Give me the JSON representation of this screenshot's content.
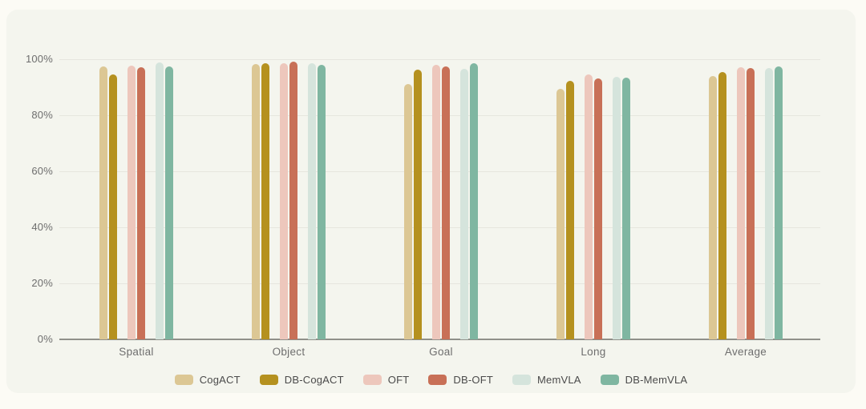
{
  "page": {
    "background": "#fcfbf5",
    "card_background": "#f4f5ee",
    "gridline_color": "#e6e6de",
    "axis_line_color": "#90908a",
    "tick_text_color": "#6e6e6e",
    "legend_text_color": "#4a4a4a"
  },
  "chart_data": {
    "type": "bar",
    "title": "",
    "xlabel": "",
    "ylabel": "",
    "categories": [
      "Spatial",
      "Object",
      "Goal",
      "Long",
      "Average"
    ],
    "series": [
      {
        "name": "CogACT",
        "color": "#dcc794",
        "values": [
          97.3,
          98.2,
          90.9,
          89.2,
          93.9
        ]
      },
      {
        "name": "DB-CogACT",
        "color": "#b5911f",
        "values": [
          94.3,
          98.3,
          96.1,
          92.1,
          95.2
        ]
      },
      {
        "name": "OFT",
        "color": "#edc7bc",
        "values": [
          97.6,
          98.4,
          97.9,
          94.5,
          97.1
        ]
      },
      {
        "name": "DB-OFT",
        "color": "#c87057",
        "values": [
          96.9,
          99.1,
          97.3,
          93.1,
          96.6
        ]
      },
      {
        "name": "MemVLA",
        "color": "#d5e4dc",
        "values": [
          98.6,
          98.3,
          96.5,
          93.7,
          96.8
        ]
      },
      {
        "name": "DB-MemVLA",
        "color": "#7fb6a1",
        "values": [
          97.3,
          97.8,
          98.5,
          93.4,
          97.3
        ]
      }
    ],
    "y_axis": {
      "min": 0,
      "max": 100,
      "tick_step": 20,
      "tick_labels": [
        "0%",
        "20%",
        "40%",
        "60%",
        "80%",
        "100%"
      ],
      "unit": "%"
    },
    "grid": true,
    "legend_position": "bottom"
  }
}
